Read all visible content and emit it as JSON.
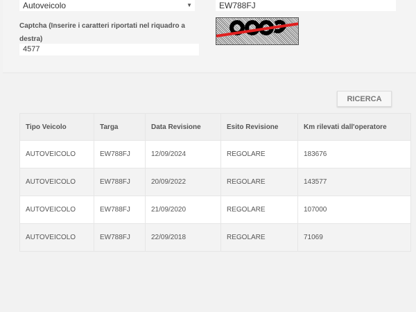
{
  "form": {
    "vehicle_type_value": "Autoveicolo",
    "plate_value": "EW788FJ",
    "captcha_label": "Captcha (Inserire i caratteri riportati nel riquadro a destra)",
    "captcha_value": "4577",
    "captcha_image_text": "4577"
  },
  "search_button": "RICERCA",
  "table": {
    "headers": [
      "Tipo Veicolo",
      "Targa",
      "Data Revisione",
      "Esito Revisione",
      "Km rilevati dall'operatore"
    ],
    "rows": [
      [
        "AUTOVEICOLO",
        "EW788FJ",
        "12/09/2024",
        "REGOLARE",
        "183676"
      ],
      [
        "AUTOVEICOLO",
        "EW788FJ",
        "20/09/2022",
        "REGOLARE",
        "143577"
      ],
      [
        "AUTOVEICOLO",
        "EW788FJ",
        "21/09/2020",
        "REGOLARE",
        "107000"
      ],
      [
        "AUTOVEICOLO",
        "EW788FJ",
        "22/09/2018",
        "REGOLARE",
        "71069"
      ]
    ]
  }
}
